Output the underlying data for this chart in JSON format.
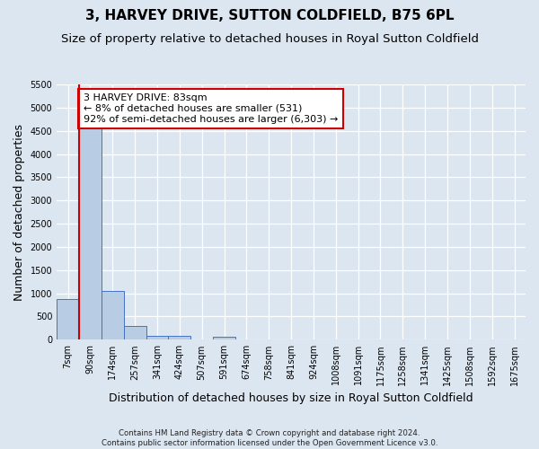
{
  "title": "3, HARVEY DRIVE, SUTTON COLDFIELD, B75 6PL",
  "subtitle": "Size of property relative to detached houses in Royal Sutton Coldfield",
  "xlabel": "Distribution of detached houses by size in Royal Sutton Coldfield",
  "ylabel": "Number of detached properties",
  "footnote": "Contains HM Land Registry data © Crown copyright and database right 2024.\nContains public sector information licensed under the Open Government Licence v3.0.",
  "x_labels": [
    "7sqm",
    "90sqm",
    "174sqm",
    "257sqm",
    "341sqm",
    "424sqm",
    "507sqm",
    "591sqm",
    "674sqm",
    "758sqm",
    "841sqm",
    "924sqm",
    "1008sqm",
    "1091sqm",
    "1175sqm",
    "1258sqm",
    "1341sqm",
    "1425sqm",
    "1508sqm",
    "1592sqm",
    "1675sqm"
  ],
  "bar_values": [
    880,
    4580,
    1060,
    290,
    90,
    75,
    0,
    55,
    0,
    0,
    0,
    0,
    0,
    0,
    0,
    0,
    0,
    0,
    0,
    0,
    0
  ],
  "bar_color": "#b8cce4",
  "bar_edge_color": "#4472c4",
  "annotation_text": "3 HARVEY DRIVE: 83sqm\n← 8% of detached houses are smaller (531)\n92% of semi-detached houses are larger (6,303) →",
  "annotation_box_facecolor": "#ffffff",
  "annotation_box_edgecolor": "#cc0000",
  "red_line_color": "#cc0000",
  "red_line_x": 0.5,
  "ylim": [
    0,
    5500
  ],
  "yticks": [
    0,
    500,
    1000,
    1500,
    2000,
    2500,
    3000,
    3500,
    4000,
    4500,
    5000,
    5500
  ],
  "background_color": "#dce6f1",
  "grid_color": "#ffffff",
  "title_fontsize": 11,
  "subtitle_fontsize": 9.5,
  "ylabel_fontsize": 9,
  "xlabel_fontsize": 9,
  "tick_fontsize": 7,
  "annotation_fontsize": 8
}
